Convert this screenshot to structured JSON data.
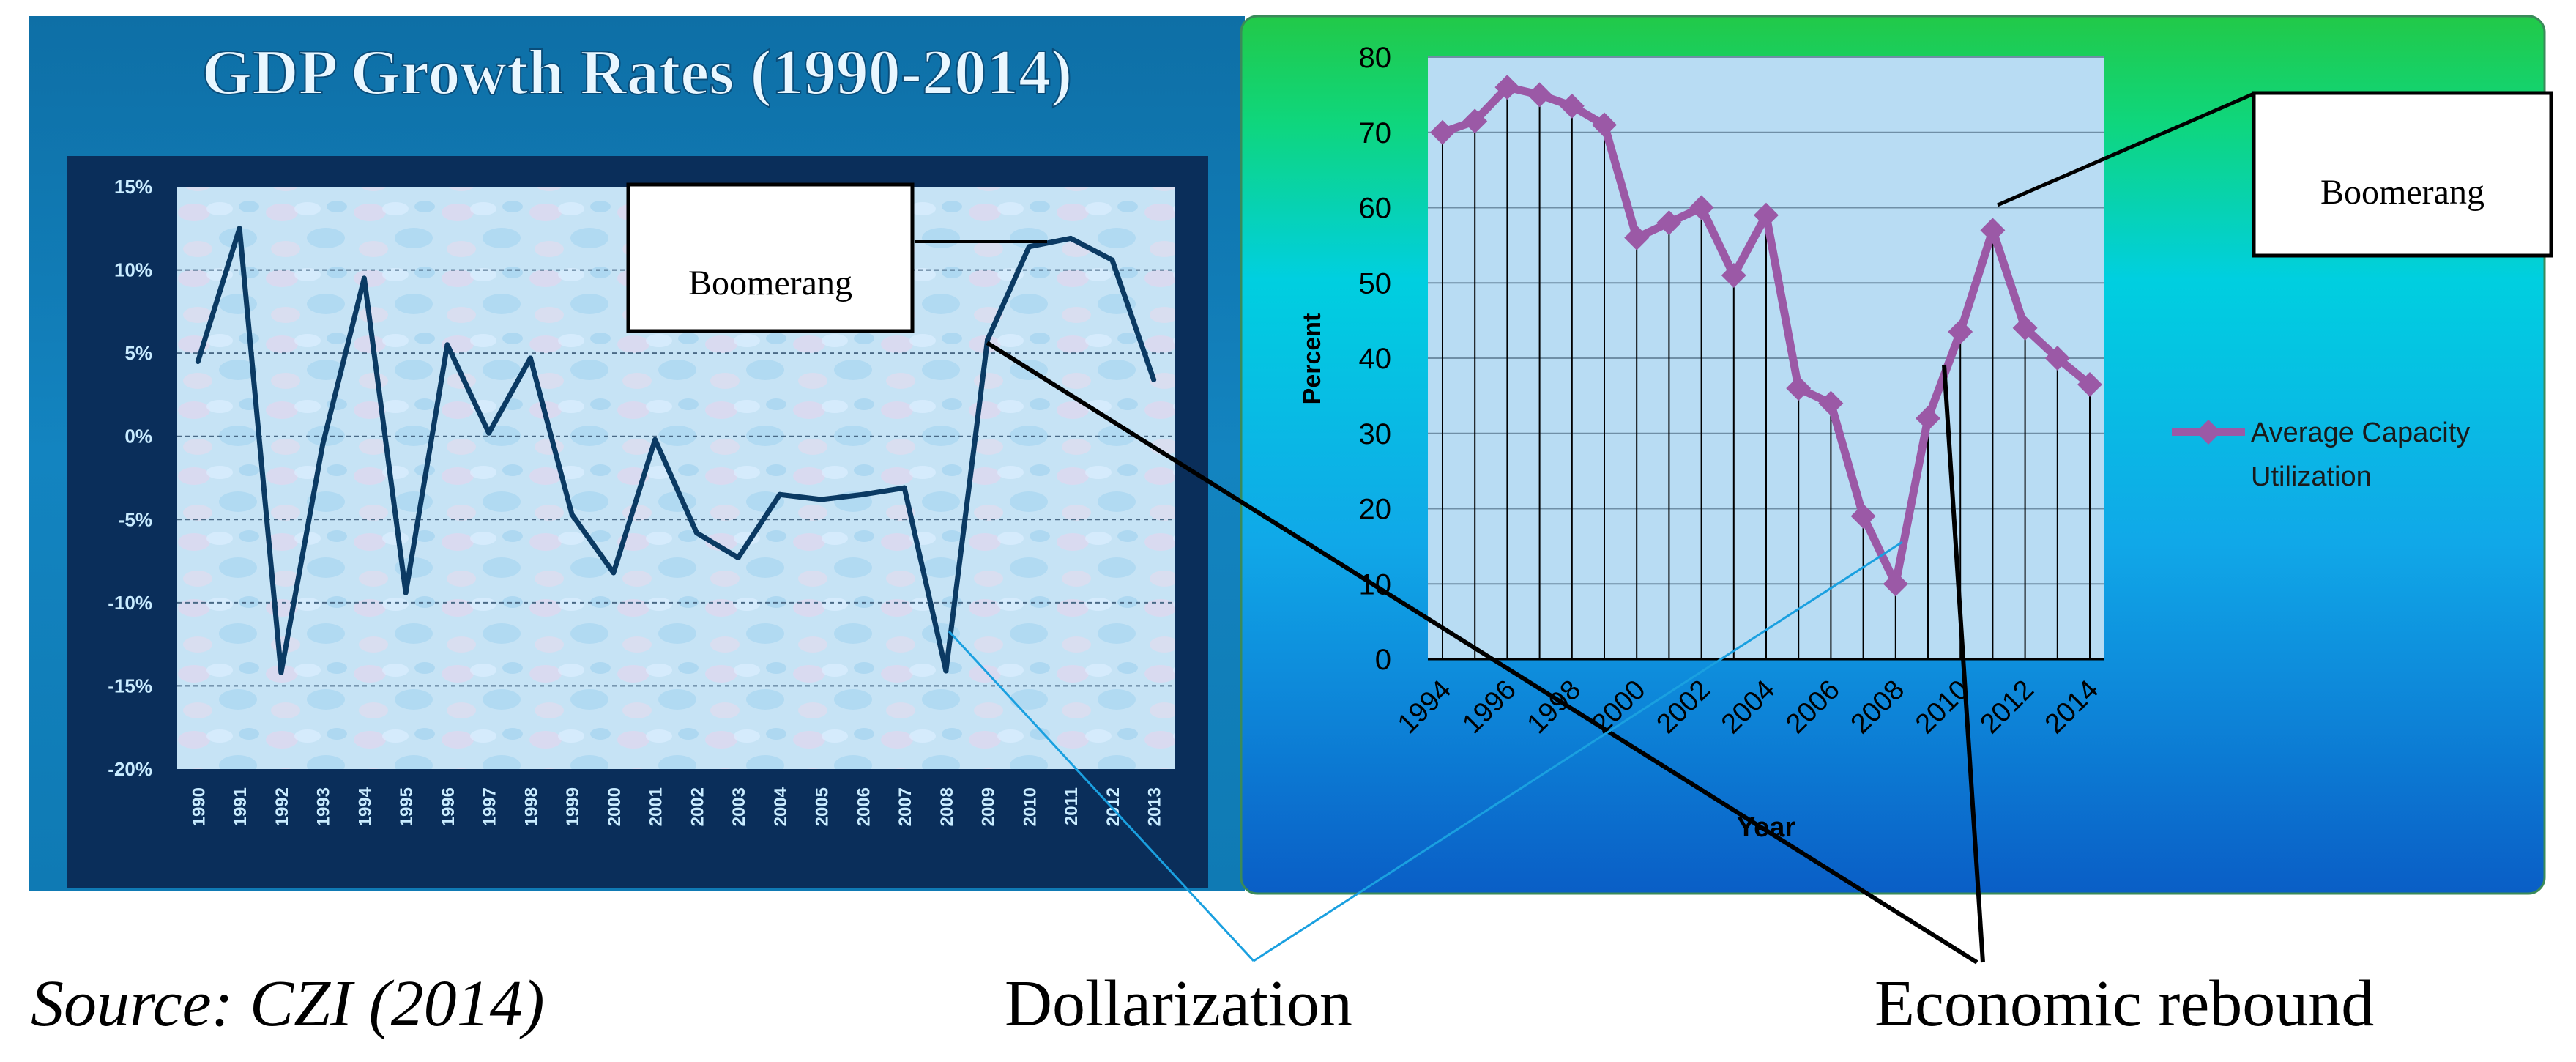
{
  "colors": {
    "left_panel_bg": "#0f7fb8",
    "left_title": "#e8f6ff",
    "left_line": "#0b3a63",
    "left_plot_bg": "#c9e6f5",
    "right_green": "#1fc84a",
    "right_cyan": "#00c9e0",
    "right_blue": "#0a74d4",
    "right_plot_bg": "#b9dcf2",
    "right_line": "#9b59a6",
    "connector_black": "#000000",
    "connector_blue": "#1aa0e0"
  },
  "chart_data": [
    {
      "id": "gdp",
      "type": "line",
      "title": "GDP Growth Rates (1990-2014)",
      "xlabel": "",
      "ylabel": "",
      "categories": [
        "1990",
        "1991",
        "1992",
        "1993",
        "1994",
        "1995",
        "1996",
        "1997",
        "1998",
        "1999",
        "2000",
        "2001",
        "2002",
        "2003",
        "2004",
        "2005",
        "2006",
        "2007",
        "2008",
        "2009",
        "2010",
        "2011",
        "2012",
        "2013"
      ],
      "series": [
        {
          "name": "GDP growth",
          "values": [
            4.5,
            12.5,
            -14.2,
            -0.5,
            9.5,
            -9.4,
            5.5,
            0.2,
            4.7,
            -4.7,
            -8.2,
            -0.2,
            -5.8,
            -7.3,
            -3.5,
            -3.8,
            -3.5,
            -3.1,
            -14.1,
            5.8,
            11.4,
            11.9,
            10.6,
            3.4
          ]
        }
      ],
      "ylim": [
        -20,
        15
      ],
      "yticks": [
        15,
        10,
        5,
        0,
        -5,
        -10,
        -15,
        -20
      ],
      "ytick_labels": [
        "15%",
        "10%",
        "5%",
        "0%",
        "-5%",
        "-10%",
        "-15%",
        "-20%"
      ],
      "grid": true
    },
    {
      "id": "capacity",
      "type": "line",
      "title": "",
      "xlabel": "Year",
      "ylabel": "Percent",
      "x": [
        1994,
        1995,
        1996,
        1997,
        1998,
        1999,
        2000,
        2001,
        2002,
        2003,
        2004,
        2005,
        2006,
        2007,
        2008,
        2009,
        2010,
        2011,
        2012,
        2013,
        2014
      ],
      "xtick_labels": [
        "1994",
        "1996",
        "1998",
        "2000",
        "2002",
        "2004",
        "2006",
        "2008",
        "2010",
        "2012",
        "2014"
      ],
      "series": [
        {
          "name": "Average Capacity Utilization",
          "values": [
            70,
            71.5,
            76,
            75,
            73.5,
            71,
            56,
            58,
            60,
            51,
            59,
            36,
            34,
            19,
            10,
            32,
            43.5,
            57,
            44,
            40,
            36.5
          ]
        }
      ],
      "ylim": [
        0,
        80
      ],
      "yticks": [
        0,
        10,
        20,
        30,
        40,
        50,
        60,
        70,
        80
      ],
      "legend": [
        "Average Capacity",
        "Utilization"
      ],
      "legend_position": "right",
      "grid": true
    }
  ],
  "annotations": {
    "boomerang_left": "Boomerang",
    "boomerang_right": "Boomerang",
    "source": "Source: CZI (2014)",
    "dollarization": "Dollarization",
    "economic_rebound": "Economic rebound"
  }
}
